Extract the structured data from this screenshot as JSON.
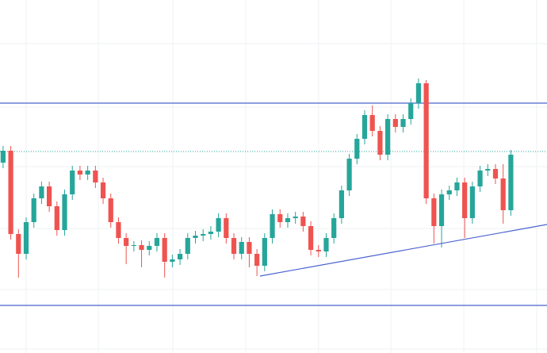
{
  "chart_data": {
    "type": "candlestick",
    "ylim": [
      0,
      445
    ],
    "xlim": [
      -0.4,
      70.7
    ],
    "up_color": "#26a69a",
    "down_color": "#ef5350",
    "line_color": "#4a63d0",
    "open": [
      240,
      255,
      150,
      125,
      165,
      195,
      210,
      185,
      155,
      200,
      230,
      225,
      230,
      215,
      195,
      165,
      145,
      135,
      136,
      130,
      135,
      145,
      115,
      118,
      125,
      145,
      148,
      150,
      153,
      170,
      145,
      125,
      140,
      125,
      110,
      145,
      175,
      165,
      170,
      172,
      160,
      130,
      128,
      145,
      170,
      205,
      245,
      270,
      300,
      280,
      250,
      295,
      285,
      295,
      315,
      340,
      195,
      160,
      200,
      205,
      215,
      170,
      210,
      230,
      232,
      220,
      180
    ],
    "high": [
      261,
      261,
      156,
      171,
      201,
      216,
      216,
      191,
      206,
      236,
      236,
      236,
      236,
      221,
      201,
      171,
      151,
      141,
      142,
      141,
      151,
      151,
      124,
      131,
      151,
      154,
      156,
      160,
      176,
      176,
      151,
      146,
      146,
      131,
      151,
      181,
      181,
      176,
      178,
      178,
      166,
      136,
      151,
      176,
      211,
      251,
      276,
      306,
      312,
      286,
      301,
      301,
      301,
      321,
      346,
      344,
      201,
      206,
      211,
      221,
      221,
      216,
      236,
      238,
      238,
      238,
      256
    ],
    "low": [
      233,
      143,
      95,
      118,
      158,
      188,
      178,
      148,
      148,
      193,
      218,
      218,
      208,
      188,
      158,
      138,
      112,
      128,
      108,
      123,
      128,
      95,
      108,
      111,
      118,
      138,
      141,
      143,
      146,
      138,
      118,
      118,
      108,
      97,
      103,
      138,
      158,
      158,
      163,
      153,
      123,
      121,
      121,
      138,
      163,
      198,
      238,
      263,
      273,
      243,
      243,
      278,
      278,
      288,
      308,
      188,
      138,
      133,
      193,
      198,
      145,
      163,
      203,
      223,
      213,
      163,
      173
    ],
    "close": [
      255,
      150,
      125,
      165,
      195,
      210,
      185,
      155,
      200,
      230,
      225,
      230,
      215,
      195,
      165,
      145,
      135,
      136,
      130,
      135,
      145,
      115,
      118,
      125,
      145,
      148,
      150,
      153,
      170,
      145,
      125,
      140,
      125,
      110,
      145,
      175,
      165,
      170,
      172,
      160,
      130,
      128,
      145,
      170,
      205,
      245,
      270,
      300,
      280,
      250,
      295,
      285,
      295,
      315,
      340,
      195,
      160,
      200,
      205,
      215,
      170,
      210,
      230,
      232,
      220,
      180,
      250
    ],
    "levels": [
      315,
      60
    ],
    "last_price_line": 254,
    "trendline": {
      "x": [
        33.4,
        70.7
      ],
      "y": [
        97,
        162
      ]
    }
  }
}
